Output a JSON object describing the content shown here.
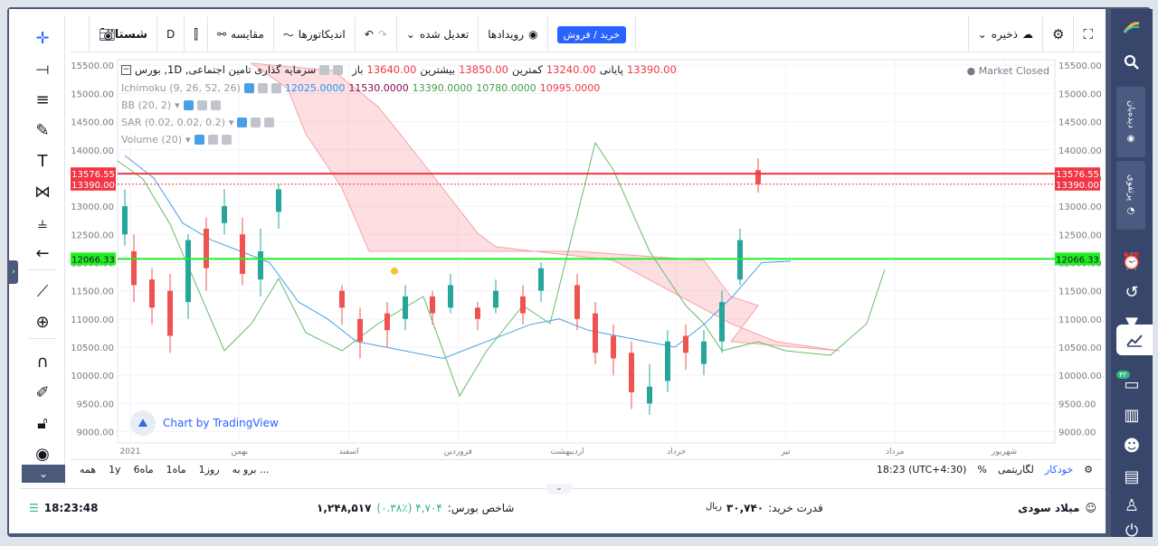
{
  "toolbar": {
    "fullscreen_icon": "fullscreen-icon",
    "settings_icon": "gear-icon",
    "save_label": "ذخیره",
    "snapshot_icon": "camera-icon",
    "buy_sell_label": "خرید / فروش",
    "events_label": "رویدادها",
    "adjusted_label": "تعدیل شده",
    "indicators_label": "اندیکاتورها",
    "compare_label": "مقایسه",
    "interval": "D",
    "symbol": "شستا"
  },
  "legend": {
    "main": "سرمایه گذاری تامین اجتماعی, 1D, بورس",
    "open_label": "باز",
    "open": "13640.00",
    "high_label": "بیشترین",
    "high": "13850.00",
    "low_label": "کمترین",
    "low": "13240.00",
    "close_label": "پایانی",
    "close": "13390.00",
    "market_status": "Market Closed",
    "ichimoku_label": "Ichimoku (9, 26, 52, 26)",
    "ichimoku_values": [
      "12025.0000",
      "11530.0000",
      "13390.0000",
      "10780.0000",
      "10995.0000"
    ],
    "bb_label": "BB (20, 2)",
    "sar_label": "SAR (0.02, 0.02, 0.2)",
    "volume_label": "Volume (20)"
  },
  "watermark": "Chart by TradingView",
  "price_labels": {
    "red_line": "13576.55",
    "last_close": "13390.00",
    "green_line": "12066.33"
  },
  "chart_data": {
    "type": "line",
    "title": "سرمایه گذاری تامین اجتماعی, 1D, بورس",
    "y_ticks": [
      "15500.00",
      "15000.00",
      "14500.00",
      "14000.00",
      "13500.00",
      "13000.00",
      "12500.00",
      "12000.00",
      "11500.00",
      "11000.00",
      "10500.00",
      "10000.00",
      "9500.00",
      "9000.00"
    ],
    "x_ticks": [
      "2021",
      "بهمن",
      "اسفند",
      "فروردین",
      "اردیبهشت",
      "خرداد",
      "تیر",
      "مرداد",
      "شهریور"
    ],
    "ylim": [
      8800,
      15600
    ],
    "hlines": [
      {
        "value": 13576.55,
        "color": "#f23645"
      },
      {
        "value": 12066.33,
        "color": "#22ee22"
      },
      {
        "value": 13390.0,
        "color": "#f23645"
      }
    ],
    "series": [
      {
        "name": "Ichimoku",
        "values": [
          13900,
          13500,
          12700,
          12400,
          12200,
          12000,
          11300,
          11000,
          10600,
          10500,
          10400,
          10300,
          10500,
          10700,
          10900,
          11000,
          10800,
          10700,
          10600,
          10500,
          10900,
          11400,
          12000,
          12025
        ]
      }
    ]
  },
  "chartbar": {
    "ranges": [
      "همه",
      "1y",
      "6ماه",
      "1ماه",
      "1روز",
      "برو به ..."
    ],
    "time": "18:23 (UTC+4:30)",
    "percent": "%",
    "log": "لگاریتمی",
    "auto": "خودکار"
  },
  "footer": {
    "clock": "18:23:48",
    "index_label": "شاخص بورس:",
    "index_value": "۱,۲۴۸,۵۱۷",
    "index_change": "۴,۷۰۴ (۰.۳۸٪)",
    "purchase_label": "قدرت خرید:",
    "purchase_value": "۳۰,۷۴۰",
    "purchase_unit": "ریال",
    "user_name": "میلاد سودی"
  },
  "rightbar": {
    "watchlist_label": "دیده‌بان",
    "portfolio_label": "پرتفوی",
    "badge": "۴۲"
  }
}
